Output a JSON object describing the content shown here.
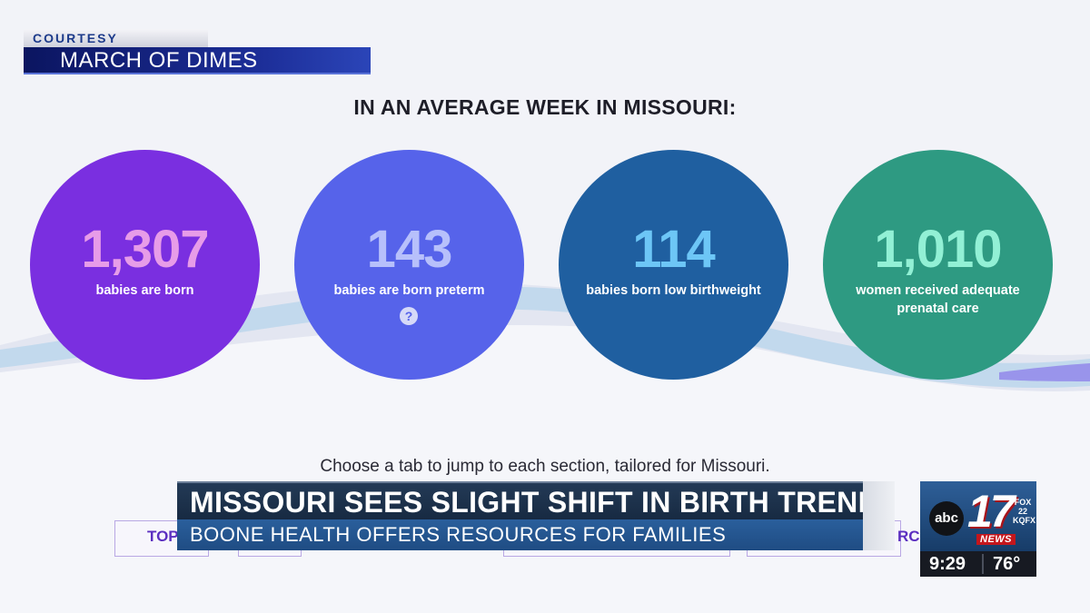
{
  "courtesy": {
    "label": "COURTESY",
    "source": "MARCH OF DIMES"
  },
  "headline": "IN AN AVERAGE WEEK IN MISSOURI:",
  "stats": [
    {
      "number": "1,307",
      "label": "babies are born",
      "color": "#7a2fe0"
    },
    {
      "number": "143",
      "label": "babies are born preterm",
      "help": "?",
      "color": "#5663ea"
    },
    {
      "number": "114",
      "label": "babies born low birthweight",
      "color": "#1f5fa0"
    },
    {
      "number": "1,010",
      "label": "women received adequate prenatal care",
      "color": "#2e9a82"
    }
  ],
  "tab_prompt": "Choose a tab to jump to each section, tailored for Missouri.",
  "tabs_partial": {
    "left": "TOPI",
    "right": "RC"
  },
  "lower_third": {
    "headline": "MISSOURI SEES SLIGHT SHIFT IN BIRTH TRENDS",
    "subhead": "BOONE HEALTH OFFERS RESOURCES FOR FAMILIES"
  },
  "station": {
    "network": "abc",
    "channel": "17",
    "partner": "FOX 22",
    "partner_call": "KQFX",
    "news": "NEWS",
    "time": "9:29",
    "temperature": "76°"
  }
}
